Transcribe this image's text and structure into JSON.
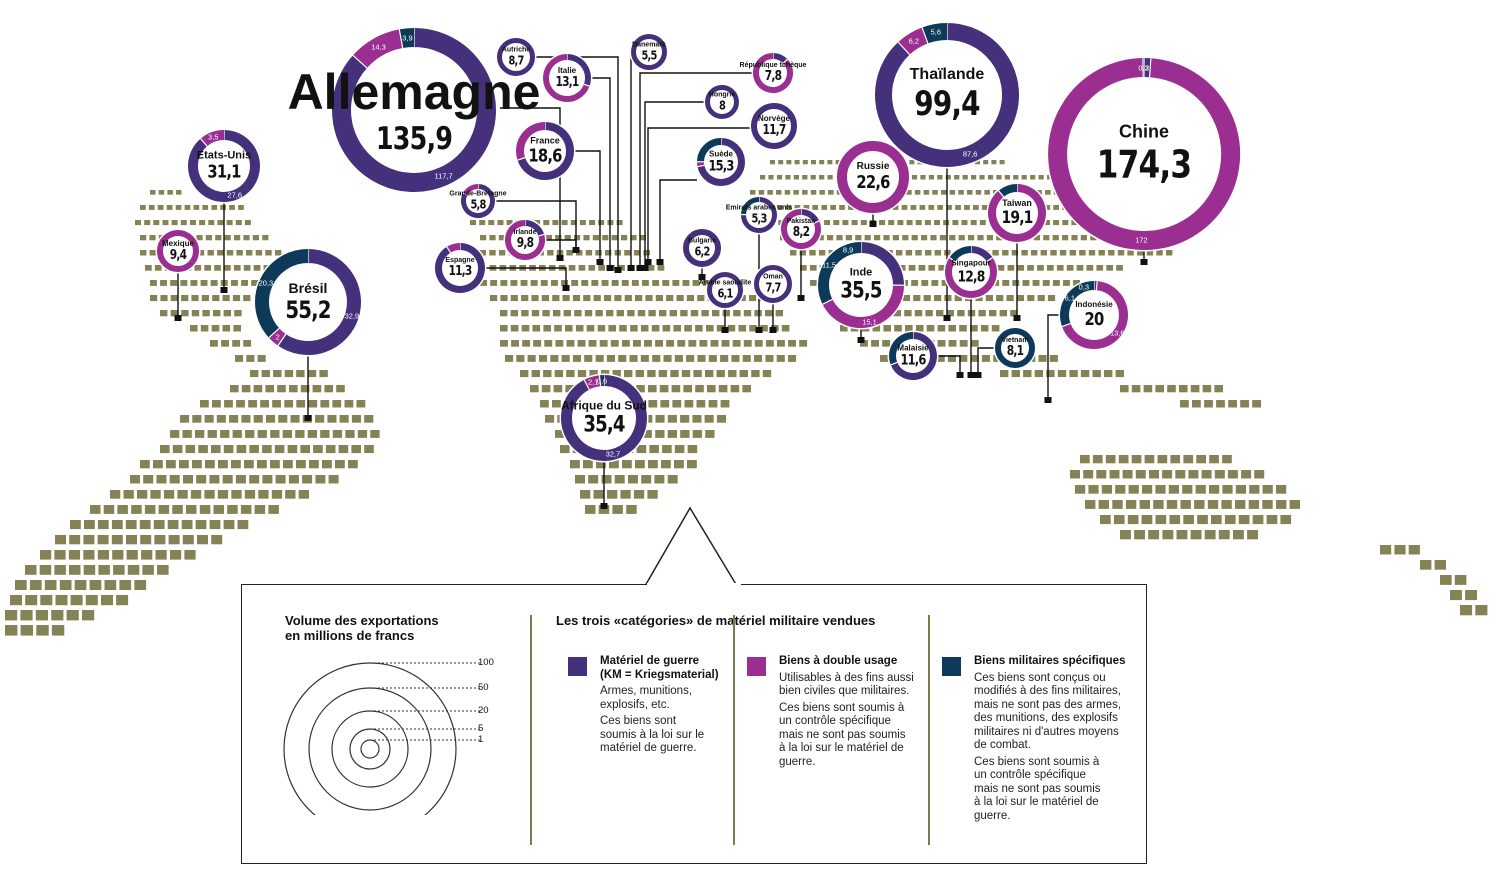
{
  "colors": {
    "km": "#45307c",
    "double": "#9b2e91",
    "specific": "#0c3a58",
    "land": "#858356",
    "line": "#111111"
  },
  "countries": [
    {
      "name": "Allemagne",
      "total": "135,9",
      "km": "117,7",
      "double": "14,3",
      "specific": "3,9",
      "v": [
        117.7,
        14.3,
        3.9
      ]
    },
    {
      "name": "Etats-Unis",
      "total": "31,1",
      "km": "27,6",
      "double": "3,5",
      "specific": "",
      "v": [
        27.6,
        3.5,
        0
      ]
    },
    {
      "name": "Mexique",
      "total": "9,4",
      "km": "",
      "double": "",
      "specific": "",
      "v": [
        0,
        9.4,
        0
      ]
    },
    {
      "name": "Brésil",
      "total": "55,2",
      "km": "32,9",
      "double": "2",
      "specific": "20,3",
      "v": [
        32.9,
        2,
        20.3
      ]
    },
    {
      "name": "Autriche",
      "total": "8,7",
      "km": "",
      "double": "",
      "specific": "",
      "v": [
        8.7,
        0,
        0
      ]
    },
    {
      "name": "Italie",
      "total": "13,1",
      "km": "",
      "double": "",
      "specific": "",
      "v": [
        4,
        9.1,
        0
      ]
    },
    {
      "name": "Danemark",
      "total": "5,5",
      "km": "",
      "double": "",
      "specific": "",
      "v": [
        5.5,
        0,
        0
      ]
    },
    {
      "name": "République tchèque",
      "total": "7,8",
      "km": "",
      "double": "",
      "specific": "",
      "v": [
        1,
        6.8,
        0
      ]
    },
    {
      "name": "Hongrie",
      "total": "8",
      "km": "",
      "double": "",
      "specific": "",
      "v": [
        8,
        0,
        0
      ]
    },
    {
      "name": "Norvège",
      "total": "11,7",
      "km": "",
      "double": "",
      "specific": "",
      "v": [
        11.7,
        0,
        0
      ]
    },
    {
      "name": "France",
      "total": "18,6",
      "km": "",
      "double": "",
      "specific": "",
      "v": [
        13,
        5.6,
        0
      ]
    },
    {
      "name": "Suède",
      "total": "15,3",
      "km": "",
      "double": "",
      "specific": "",
      "v": [
        11,
        0.5,
        3.8
      ]
    },
    {
      "name": "Grande-Bretagne",
      "total": "5,8",
      "km": "",
      "double": "",
      "specific": "",
      "v": [
        4.8,
        1,
        0
      ]
    },
    {
      "name": "Irlande",
      "total": "9,8",
      "km": "",
      "double": "",
      "specific": "",
      "v": [
        2,
        7.8,
        0
      ]
    },
    {
      "name": "Espagne",
      "total": "11,3",
      "km": "",
      "double": "",
      "specific": "",
      "v": [
        10.3,
        1,
        0
      ]
    },
    {
      "name": "Bulgarie",
      "total": "6,2",
      "km": "",
      "double": "",
      "specific": "",
      "v": [
        6.2,
        0,
        0
      ]
    },
    {
      "name": "Arabie saoudite",
      "total": "6,1",
      "km": "",
      "double": "",
      "specific": "",
      "v": [
        6.1,
        0,
        0
      ]
    },
    {
      "name": "Emirats arabes unis",
      "total": "5,3",
      "km": "",
      "double": "",
      "specific": "",
      "v": [
        4,
        0,
        1.3
      ]
    },
    {
      "name": "Oman",
      "total": "7,7",
      "km": "",
      "double": "",
      "specific": "",
      "v": [
        7.7,
        0,
        0
      ]
    },
    {
      "name": "Pakistan",
      "total": "8,2",
      "km": "",
      "double": "",
      "specific": "",
      "v": [
        1.5,
        6.7,
        0
      ]
    },
    {
      "name": "Inde",
      "total": "35,5",
      "km": "",
      "double": "15,1",
      "specific": "11,5",
      "extra": "8,9",
      "v": [
        8.9,
        15.1,
        11.5
      ]
    },
    {
      "name": "Russie",
      "total": "22,6",
      "km": "",
      "double": "",
      "specific": "",
      "v": [
        0,
        22.6,
        0
      ]
    },
    {
      "name": "Thaïlande",
      "total": "99,4",
      "km": "87,6",
      "double": "6,2",
      "specific": "5,6",
      "v": [
        87.6,
        6.2,
        5.6
      ]
    },
    {
      "name": "Chine",
      "total": "174,3",
      "km": "2",
      "double": "172",
      "specific": "0,3",
      "v": [
        2,
        172,
        0.3
      ]
    },
    {
      "name": "Taiwan",
      "total": "19,1",
      "km": "",
      "double": "",
      "specific": "",
      "v": [
        0,
        17,
        2.1
      ]
    },
    {
      "name": "Singapour",
      "total": "12,8",
      "km": "",
      "double": "",
      "specific": "",
      "v": [
        2,
        8.8,
        2
      ]
    },
    {
      "name": "Indonésie",
      "total": "20",
      "km": "",
      "double": "13,6",
      "specific": "6,1",
      "extra": "0,3",
      "v": [
        0.3,
        13.6,
        6.1
      ]
    },
    {
      "name": "Malaisie",
      "total": "11,6",
      "km": "",
      "double": "",
      "specific": "",
      "v": [
        8,
        0,
        3.6
      ]
    },
    {
      "name": "Vietnam",
      "total": "8,1",
      "km": "",
      "double": "",
      "specific": "",
      "v": [
        0,
        0,
        8.1
      ]
    },
    {
      "name": "Afrique du Sud",
      "total": "35,4",
      "km": "32,7",
      "double": "2,1",
      "specific": "0,6",
      "v": [
        32.7,
        2.1,
        0.6
      ]
    }
  ],
  "legend": {
    "volume_title_1": "Volume des exportations",
    "volume_title_2": "en millions de francs",
    "scale": [
      "100",
      "50",
      "20",
      "5",
      "1"
    ],
    "categories_title": "Les trois «catégories» de matériel militaire vendues",
    "cat1_name_1": "Matériel de guerre",
    "cat1_name_2": "(KM = Kriegsmaterial)",
    "cat1_p1": "Armes, munitions, explosifs, etc.",
    "cat1_p2": "Ces biens sont soumis à la loi sur le matériel de guerre.",
    "cat2_name": "Biens à double usage",
    "cat2_p1": "Utilisables à des fins aussi bien civiles que militaires.",
    "cat2_p2": "Ces biens sont soumis à un contrôle spécifique mais ne sont pas soumis à la loi sur le matériel de guerre.",
    "cat3_name": "Biens militaires spécifiques",
    "cat3_p1": "Ces biens sont conçus ou modifiés à des fins militaires, mais ne sont pas des armes, des munitions, des explosifs militaires ni d'autres moyens de combat.",
    "cat3_p2": "Ces biens sont soumis à un contrôle spécifique mais ne sont pas soumis à la loi sur le matériel de guerre."
  }
}
